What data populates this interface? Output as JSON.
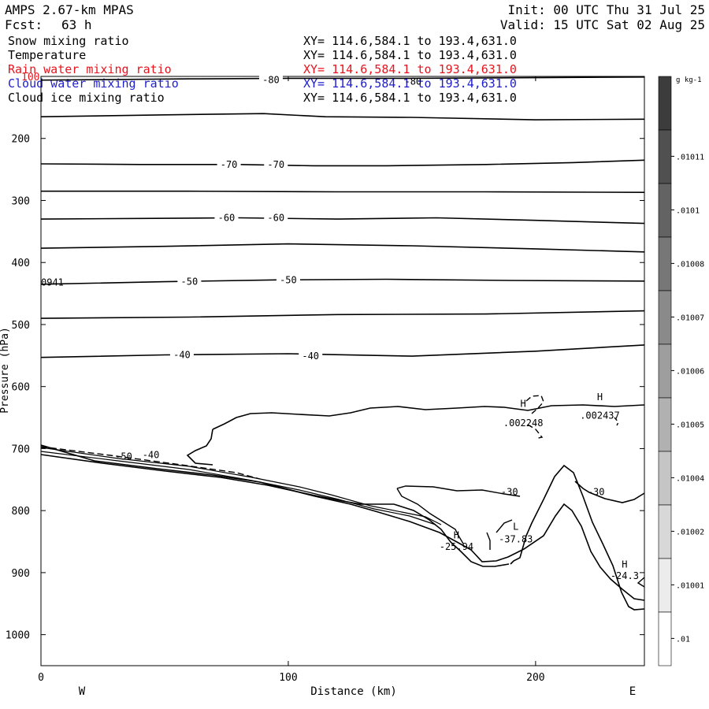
{
  "header": {
    "model": "AMPS 2.67-km MPAS",
    "fcst_label": "Fcst:",
    "fcst_value": "63 h",
    "init": "Init: 00 UTC Thu 31 Jul 25",
    "valid": "Valid: 15 UTC Sat 02 Aug 25"
  },
  "fields": [
    {
      "name": "Snow mixing ratio",
      "xy": "XY= 114.6,584.1 to 193.4,631.0",
      "color": "#000000"
    },
    {
      "name": "Temperature",
      "xy": "XY= 114.6,584.1 to 193.4,631.0",
      "color": "#000000"
    },
    {
      "name": "Rain water mixing ratio",
      "xy": "XY= 114.6,584.1 to 193.4,631.0",
      "color": "#e8141e"
    },
    {
      "name": "Cloud water mixing ratio",
      "xy": "XY= 114.6,584.1 to 193.4,631.0",
      "color": "#1e1ecc"
    },
    {
      "name": "Cloud ice mixing ratio",
      "xy": "XY= 114.6,584.1 to 193.4,631.0",
      "color": "#000000"
    }
  ],
  "chart_data": {
    "type": "contour cross-section",
    "xlabel": "Distance (km)",
    "ylabel": "Pressure (hPa)",
    "xlim": [
      0,
      244
    ],
    "ylim": [
      1050,
      100
    ],
    "x_ticks": [
      0,
      100,
      200
    ],
    "y_ticks": [
      200,
      300,
      400,
      500,
      600,
      700,
      800,
      900,
      1000
    ],
    "y_tick_labels": [
      "200",
      "300",
      "400",
      "500",
      "600",
      "700",
      "800",
      "900",
      "1000"
    ],
    "y_top_label": "100",
    "x_ends": {
      "left": "W",
      "right": "E"
    },
    "isotherms": [
      {
        "label": "-80",
        "points": [
          [
            0,
            106
          ],
          [
            30,
            105
          ],
          [
            60,
            104
          ],
          [
            100,
            103
          ],
          [
            150,
            103
          ],
          [
            200,
            102
          ],
          [
            244,
            101
          ]
        ],
        "label_at": [
          93,
          106
        ]
      },
      {
        "label": "",
        "points": [
          [
            0,
            165
          ],
          [
            50,
            162
          ],
          [
            90,
            160
          ],
          [
            115,
            165
          ],
          [
            150,
            166
          ],
          [
            200,
            170
          ],
          [
            244,
            169
          ]
        ]
      },
      {
        "label": "-70",
        "points": [
          [
            0,
            241
          ],
          [
            40,
            242
          ],
          [
            80,
            242
          ],
          [
            110,
            244
          ],
          [
            140,
            244
          ],
          [
            180,
            242
          ],
          [
            215,
            239
          ],
          [
            244,
            235
          ]
        ],
        "label_at": [
          76,
          242
        ],
        "label_at2": [
          95,
          242
        ]
      },
      {
        "label": "",
        "points": [
          [
            0,
            285
          ],
          [
            60,
            285
          ],
          [
            120,
            286
          ],
          [
            180,
            286
          ],
          [
            244,
            287
          ]
        ]
      },
      {
        "label": "-60",
        "points": [
          [
            0,
            330
          ],
          [
            40,
            329
          ],
          [
            80,
            328
          ],
          [
            120,
            330
          ],
          [
            160,
            328
          ],
          [
            200,
            332
          ],
          [
            244,
            337
          ]
        ],
        "label_at": [
          75,
          328
        ],
        "label_at2": [
          95,
          328
        ]
      },
      {
        "label": "",
        "points": [
          [
            0,
            377
          ],
          [
            50,
            374
          ],
          [
            100,
            370
          ],
          [
            150,
            373
          ],
          [
            200,
            378
          ],
          [
            244,
            383
          ]
        ]
      },
      {
        "label": "-50",
        "points": [
          [
            0,
            435
          ],
          [
            50,
            431
          ],
          [
            95,
            428
          ],
          [
            140,
            427
          ],
          [
            190,
            429
          ],
          [
            244,
            430
          ]
        ],
        "label_at": [
          60,
          431
        ],
        "label_at2": [
          100,
          428
        ]
      },
      {
        "label": "",
        "points": [
          [
            0,
            490
          ],
          [
            60,
            488
          ],
          [
            120,
            484
          ],
          [
            180,
            483
          ],
          [
            244,
            478
          ]
        ]
      },
      {
        "label": "-40",
        "points": [
          [
            0,
            553
          ],
          [
            50,
            549
          ],
          [
            100,
            547
          ],
          [
            150,
            551
          ],
          [
            200,
            543
          ],
          [
            244,
            533
          ]
        ],
        "label_at": [
          57,
          549
        ],
        "label_at2": [
          109,
          551
        ]
      }
    ],
    "secondary_labels": [
      {
        "text": "-80",
        "x": 147,
        "y": 108
      },
      {
        "text": "0941",
        "x": 0,
        "y": 432
      },
      {
        "text": "-50",
        "x": 30,
        "y": 713
      },
      {
        "text": "-40",
        "x": 41,
        "y": 710
      },
      {
        "text": "-30",
        "x": 186,
        "y": 770
      },
      {
        "text": "-30",
        "x": 221,
        "y": 770
      }
    ],
    "extrema": [
      {
        "mark": "H",
        "value": ".002248",
        "x": 195,
        "y": 628,
        "vy": 659
      },
      {
        "mark": "H",
        "value": ".002437",
        "x": 226,
        "y": 617,
        "vy": 647
      },
      {
        "mark": "H",
        "value": "-25.94",
        "x": 168,
        "y": 840,
        "vy": 858
      },
      {
        "mark": "L",
        "value": "-37.83",
        "x": 192,
        "y": 826,
        "vy": 846
      },
      {
        "mark": "H",
        "value": "-24.3",
        "x": 236,
        "y": 887,
        "vy": 905
      }
    ],
    "colorbar": {
      "units": "g kg-1",
      "labels": [
        ".01011",
        ".0101",
        ".01008",
        ".01007",
        ".01006",
        ".01005",
        ".01004",
        ".01002",
        ".01001",
        ".01"
      ]
    }
  }
}
